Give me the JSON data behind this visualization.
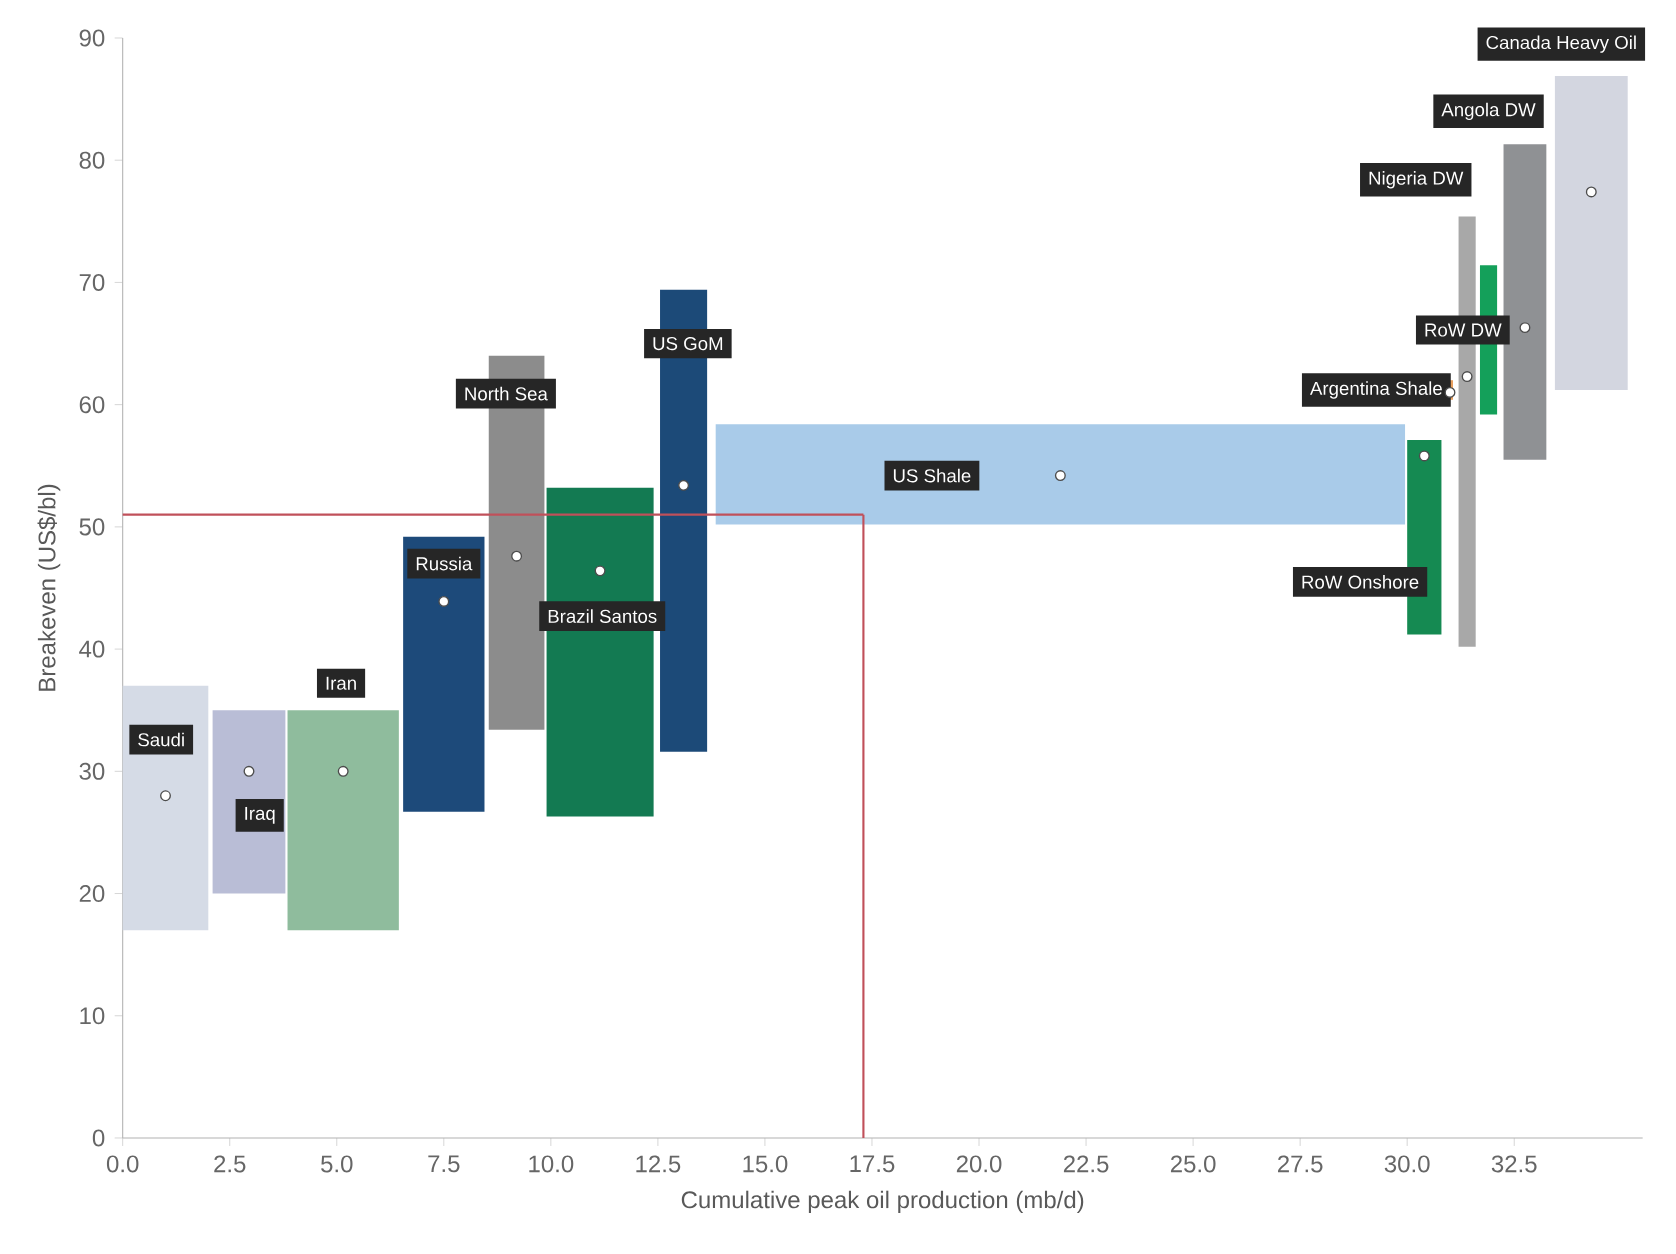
{
  "chart_data": {
    "type": "histogram",
    "xlabel": "Cumulative peak oil production (mb/d)",
    "ylabel": "Breakeven (US$/bl)",
    "xlim": [
      0,
      35.5
    ],
    "ylim": [
      0,
      90
    ],
    "xticks": [
      {
        "value": 0,
        "label": "0.0"
      },
      {
        "value": 2.5,
        "label": "2.5"
      },
      {
        "value": 5,
        "label": "5.0"
      },
      {
        "value": 7.5,
        "label": "7.5"
      },
      {
        "value": 10,
        "label": "10.0"
      },
      {
        "value": 12.5,
        "label": "12.5"
      },
      {
        "value": 15,
        "label": "15.0"
      },
      {
        "value": 17.5,
        "label": "17.5"
      },
      {
        "value": 20,
        "label": "20.0"
      },
      {
        "value": 22.5,
        "label": "22.5"
      },
      {
        "value": 25,
        "label": "25.0"
      },
      {
        "value": 27.5,
        "label": "27.5"
      },
      {
        "value": 30,
        "label": "30.0"
      },
      {
        "value": 32.5,
        "label": "32.5"
      }
    ],
    "yticks": [
      0,
      10,
      20,
      30,
      40,
      50,
      60,
      70,
      80,
      90
    ],
    "series": [
      {
        "name": "Saudi",
        "color": "#d5dbe6",
        "bins": [
          0,
          2.0
        ],
        "base": [
          17
        ],
        "values": [
          20
        ]
      },
      {
        "name": "Iraq",
        "color": "#b9bdd6",
        "bins": [
          2.1,
          3.8
        ],
        "base": [
          20
        ],
        "values": [
          15
        ]
      },
      {
        "name": "Iran",
        "color": "#8fbc9d",
        "bins": [
          3.85,
          6.45
        ],
        "base": [
          17
        ],
        "values": [
          18
        ]
      },
      {
        "name": "Russia",
        "color": "#1d4a7a",
        "bins": [
          6.55,
          8.45
        ],
        "base": [
          26.7
        ],
        "values": [
          22.5
        ]
      },
      {
        "name": "North Sea",
        "color": "#8c8c8c",
        "bins": [
          8.55,
          9.85
        ],
        "base": [
          33.4
        ],
        "values": [
          30.6
        ]
      },
      {
        "name": "Brazil Santos",
        "color": "#137a52",
        "bins": [
          9.9,
          12.4
        ],
        "base": [
          26.3
        ],
        "values": [
          26.9
        ]
      },
      {
        "name": "US GoM",
        "color": "#1c4a78",
        "bins": [
          12.55,
          13.65
        ],
        "base": [
          31.6
        ],
        "values": [
          37.8
        ]
      },
      {
        "name": "US Shale",
        "color": "#a9cbe9",
        "bins": [
          13.85,
          29.95
        ],
        "base": [
          50.2
        ],
        "values": [
          8.2
        ]
      },
      {
        "name": "RoW Onshore",
        "color": "#158a52",
        "bins": [
          30,
          30.8
        ],
        "base": [
          41.2
        ],
        "values": [
          15.9
        ]
      },
      {
        "name": "Argentina Shale",
        "color": "#e8a060",
        "bins": [
          30.93,
          31.07
        ],
        "base": [
          60.4
        ],
        "values": [
          1.6
        ]
      },
      {
        "name": "Nigeria DW",
        "color": "#a8a8a8",
        "bins": [
          31.2,
          31.6
        ],
        "base": [
          40.2
        ],
        "values": [
          35.2
        ]
      },
      {
        "name": "RoW DW",
        "color": "#14a05a",
        "bins": [
          31.7,
          32.1
        ],
        "base": [
          59.2
        ],
        "values": [
          12.2
        ]
      },
      {
        "name": "Angola DW",
        "color": "#8f9194",
        "bins": [
          32.25,
          33.25
        ],
        "base": [
          55.5
        ],
        "values": [
          25.8
        ]
      },
      {
        "name": "Canada Heavy Oil",
        "color": "#d3d6e0",
        "bins": [
          33.45,
          35.15
        ],
        "base": [
          61.2
        ],
        "values": [
          25.7
        ]
      },
      {
        "type": "scatter",
        "marker": "circle",
        "color": "#ffffff",
        "x": [
          1.0,
          2.95,
          5.15,
          7.5,
          9.2,
          11.15,
          13.1,
          21.9,
          30.4,
          31.0,
          31.4,
          32.75,
          34.3
        ],
        "values": [
          28,
          30,
          30,
          43.9,
          47.6,
          46.4,
          53.4,
          54.2,
          55.8,
          61,
          62.3,
          66.3,
          77.4
        ]
      }
    ],
    "ref_lines": [
      {
        "axis": "y",
        "value": 51,
        "color": "#c0505a"
      },
      {
        "axis": "x",
        "value": 17.3,
        "color": "#c0505a"
      }
    ]
  }
}
